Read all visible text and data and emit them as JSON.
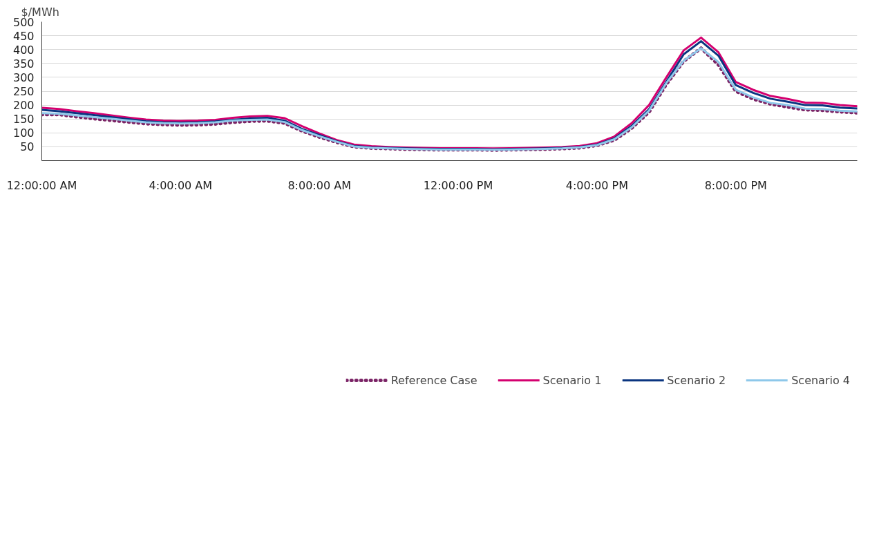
{
  "chart_data": {
    "type": "line",
    "ylabel": "$/MWh",
    "x": [
      0,
      0.5,
      1,
      1.5,
      2,
      2.5,
      3,
      3.5,
      4,
      4.5,
      5,
      5.5,
      6,
      6.5,
      7,
      7.5,
      8,
      8.5,
      9,
      9.5,
      10,
      10.5,
      11,
      11.5,
      12,
      12.5,
      13,
      13.5,
      14,
      14.5,
      15,
      15.5,
      16,
      16.5,
      17,
      17.5,
      18,
      18.5,
      19,
      19.5,
      20,
      20.5,
      21,
      21.5,
      22,
      22.5,
      23,
      23.5
    ],
    "xlim": [
      0,
      23.5
    ],
    "xticks": [
      {
        "value": 0,
        "label": "12:00:00 AM"
      },
      {
        "value": 4,
        "label": "4:00:00 AM"
      },
      {
        "value": 8,
        "label": "8:00:00 AM"
      },
      {
        "value": 12,
        "label": "12:00:00 PM"
      },
      {
        "value": 16,
        "label": "4:00:00 PM"
      },
      {
        "value": 20,
        "label": "8:00:00 PM"
      }
    ],
    "ylim": [
      0,
      500
    ],
    "yticks": [
      50,
      100,
      150,
      200,
      250,
      300,
      350,
      400,
      450,
      500
    ],
    "grid": "y",
    "legend": "bottom",
    "series": [
      {
        "name": "Reference Case",
        "color": "#7b2466",
        "line_style": "dotted",
        "values": [
          166,
          166,
          158,
          151,
          145,
          139,
          133,
          130,
          128,
          129,
          132,
          138,
          142,
          143,
          135,
          107,
          85,
          66,
          50,
          45,
          43,
          41,
          40,
          39,
          39,
          39,
          38,
          39,
          40,
          41,
          43,
          46,
          55,
          74,
          117,
          175,
          275,
          358,
          405,
          345,
          250,
          222,
          204,
          193,
          183,
          181,
          176,
          172
        ]
      },
      {
        "name": "Scenario 1",
        "color": "#d4006f",
        "line_style": "solid",
        "values": [
          190,
          186,
          178,
          171,
          163,
          155,
          148,
          144,
          143,
          144,
          147,
          154,
          159,
          161,
          153,
          124,
          98,
          74,
          58,
          52,
          49,
          47,
          46,
          45,
          45,
          45,
          44,
          45,
          46,
          47,
          49,
          53,
          63,
          87,
          135,
          200,
          300,
          397,
          443,
          390,
          283,
          255,
          233,
          222,
          209,
          208,
          200,
          196
        ]
      },
      {
        "name": "Scenario 2",
        "color": "#0a3580",
        "line_style": "solid",
        "values": [
          183,
          178,
          171,
          164,
          157,
          149,
          142,
          138,
          137,
          138,
          141,
          147,
          152,
          154,
          144,
          114,
          92,
          70,
          53,
          48,
          46,
          44,
          43,
          42,
          42,
          42,
          41,
          42,
          43,
          44,
          46,
          49,
          58,
          80,
          125,
          185,
          285,
          383,
          430,
          378,
          272,
          244,
          223,
          212,
          200,
          199,
          191,
          188
        ]
      },
      {
        "name": "Scenario 4",
        "color": "#8ec8ea",
        "line_style": "solid",
        "values": [
          171,
          169,
          163,
          157,
          151,
          144,
          138,
          135,
          134,
          135,
          138,
          144,
          147,
          148,
          139,
          110,
          88,
          68,
          51,
          46,
          44,
          42,
          41,
          40,
          40,
          40,
          39,
          40,
          41,
          42,
          44,
          48,
          56,
          77,
          120,
          180,
          280,
          360,
          405,
          355,
          255,
          228,
          208,
          200,
          187,
          186,
          180,
          177
        ]
      }
    ]
  }
}
